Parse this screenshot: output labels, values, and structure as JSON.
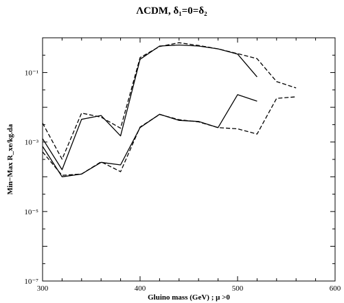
{
  "chart_data": {
    "type": "line",
    "title": "ΛCDM, δ₁=0=δ₂",
    "xlabel": "Gluino mass (GeV) ; μ >0",
    "ylabel": "Min−Max R_xe/kg.da",
    "xlim": [
      300,
      600
    ],
    "ylim": [
      1e-07,
      1
    ],
    "yscale": "log",
    "xticks": [
      "300",
      "400",
      "500",
      "600"
    ],
    "yticks": [
      {
        "value": 1e-07,
        "label": "10⁻⁷"
      },
      {
        "value": 1e-05,
        "label": "10⁻⁵"
      },
      {
        "value": 0.001,
        "label": "10⁻³"
      },
      {
        "value": 0.1,
        "label": "10⁻¹"
      }
    ],
    "grid": false,
    "series": [
      {
        "style": "solid",
        "x": [
          300,
          320,
          340,
          360,
          380,
          400,
          420,
          440,
          460,
          480,
          500,
          520
        ],
        "y": [
          0.00125,
          0.00016,
          0.0045,
          0.0058,
          0.0015,
          0.24,
          0.58,
          0.62,
          0.58,
          0.48,
          0.34,
          0.075
        ]
      },
      {
        "style": "dashed",
        "x": [
          300,
          320,
          340,
          360,
          380,
          400,
          420,
          440,
          460,
          480,
          500,
          520,
          540,
          560
        ],
        "y": [
          0.0035,
          0.00032,
          0.0068,
          0.0052,
          0.0025,
          0.27,
          0.56,
          0.72,
          0.6,
          0.48,
          0.35,
          0.25,
          0.055,
          0.036
        ]
      },
      {
        "style": "solid",
        "x": [
          300,
          320,
          340,
          360,
          380,
          400,
          420,
          440,
          460,
          480,
          500,
          520
        ],
        "y": [
          0.00075,
          0.0001,
          0.00012,
          0.00026,
          0.00022,
          0.0026,
          0.0063,
          0.0042,
          0.0039,
          0.0026,
          0.023,
          0.015
        ]
      },
      {
        "style": "dashed",
        "x": [
          300,
          320,
          340,
          360,
          380,
          400,
          420,
          440,
          460,
          480,
          500,
          520,
          540,
          560
        ],
        "y": [
          0.00052,
          0.00011,
          0.00012,
          0.00027,
          0.00014,
          0.0027,
          0.0062,
          0.0044,
          0.0038,
          0.0026,
          0.0024,
          0.0017,
          0.018,
          0.02
        ]
      }
    ]
  }
}
